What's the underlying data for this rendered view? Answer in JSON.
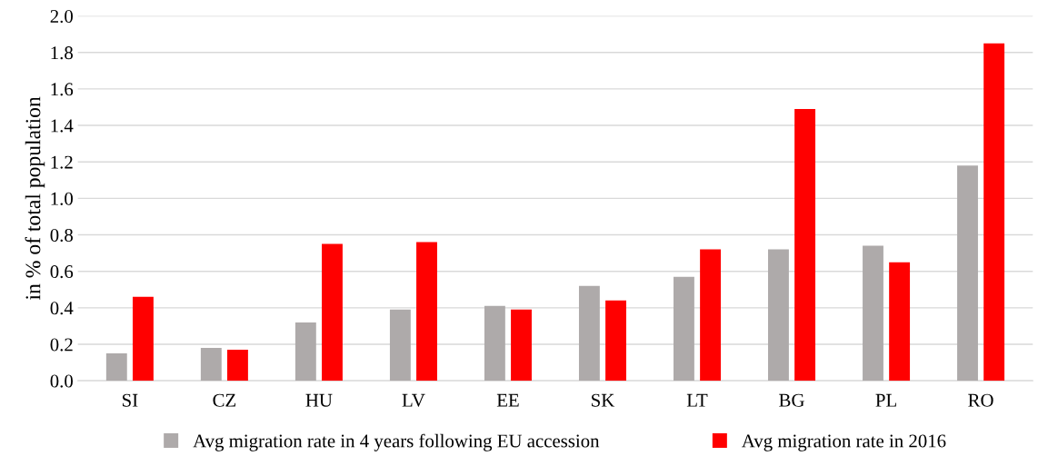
{
  "chart_data": {
    "type": "bar",
    "ylabel": "in % of total population",
    "categories": [
      "SI",
      "CZ",
      "HU",
      "LV",
      "EE",
      "SK",
      "LT",
      "BG",
      "PL",
      "RO"
    ],
    "series": [
      {
        "name": "Avg migration rate in 4 years following EU accession",
        "color": "#aeaaaa",
        "values": [
          0.15,
          0.18,
          0.32,
          0.39,
          0.41,
          0.52,
          0.57,
          0.72,
          0.74,
          1.18
        ]
      },
      {
        "name": "Avg migration rate in 2016",
        "color": "#ff0000",
        "values": [
          0.46,
          0.17,
          0.75,
          0.76,
          0.39,
          0.44,
          0.72,
          1.49,
          0.65,
          1.85
        ]
      }
    ],
    "ylim": [
      0,
      2.0
    ],
    "yticks": [
      {
        "value": 0,
        "label": "0.0"
      },
      {
        "value": 0.2,
        "label": "0.2"
      },
      {
        "value": 0.4,
        "label": "0.4"
      },
      {
        "value": 0.6,
        "label": "0.6"
      },
      {
        "value": 0.8,
        "label": "0.8"
      },
      {
        "value": 1.0,
        "label": "1.0"
      },
      {
        "value": 1.2,
        "label": "1.2"
      },
      {
        "value": 1.4,
        "label": "1.4"
      },
      {
        "value": 1.6,
        "label": "1.6"
      },
      {
        "value": 1.8,
        "label": "1.8"
      },
      {
        "value": 2.0,
        "label": "2.0"
      }
    ],
    "grid": "y",
    "legend": "bottom"
  }
}
